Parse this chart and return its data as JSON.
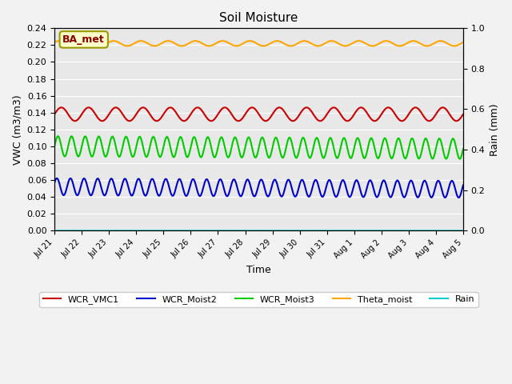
{
  "title": "Soil Moisture",
  "xlabel": "Time",
  "ylabel_left": "VWC (m3/m3)",
  "ylabel_right": "Rain (mm)",
  "annotation": "BA_met",
  "ylim_left": [
    0.0,
    0.24
  ],
  "ylim_right": [
    0.0,
    1.0
  ],
  "n_days": 15,
  "n_points": 3000,
  "series": {
    "WCR_VMC1": {
      "color": "#cc0000",
      "base": 0.138,
      "amplitude": 0.008,
      "period_days": 1.0,
      "phase": 0.0,
      "trend": 0.0,
      "linewidth": 1.5
    },
    "WCR_Moist2": {
      "color": "#0000cc",
      "base": 0.052,
      "amplitude": 0.01,
      "period_days": 0.5,
      "phase": 0.5,
      "trend": -0.0002,
      "linewidth": 1.5
    },
    "WCR_Moist3": {
      "color": "#00cc00",
      "base": 0.1,
      "amplitude": 0.012,
      "period_days": 0.5,
      "phase": 0.0,
      "trend": -0.0002,
      "linewidth": 1.5
    },
    "Theta_moist": {
      "color": "#ffa500",
      "base": 0.222,
      "amplitude": 0.003,
      "period_days": 1.0,
      "phase": 0.5,
      "trend": 0.0,
      "linewidth": 1.5
    },
    "Rain": {
      "color": "#00cccc",
      "base": 0.0,
      "amplitude": 0.0,
      "period_days": 1.0,
      "phase": 0.0,
      "trend": 0.0,
      "linewidth": 1.2
    }
  },
  "x_tick_labels": [
    "Jul 21",
    "Jul 22",
    "Jul 23",
    "Jul 24",
    "Jul 25",
    "Jul 26",
    "Jul 27",
    "Jul 28",
    "Jul 29",
    "Jul 30",
    "Jul 31",
    "Aug 1",
    "Aug 2",
    "Aug 3",
    "Aug 4",
    "Aug 5"
  ],
  "yticks_left": [
    0.0,
    0.02,
    0.04,
    0.06,
    0.08,
    0.1,
    0.12,
    0.14,
    0.16,
    0.18,
    0.2,
    0.22,
    0.24
  ],
  "yticks_right": [
    0.0,
    0.2,
    0.4,
    0.6,
    0.8,
    1.0
  ],
  "background_color": "#e8e8e8",
  "grid_color": "#ffffff",
  "fig_bg": "#f2f2f2",
  "annotation_color": "#8b0000",
  "annotation_bg": "#ffffcc",
  "annotation_edge": "#999900"
}
